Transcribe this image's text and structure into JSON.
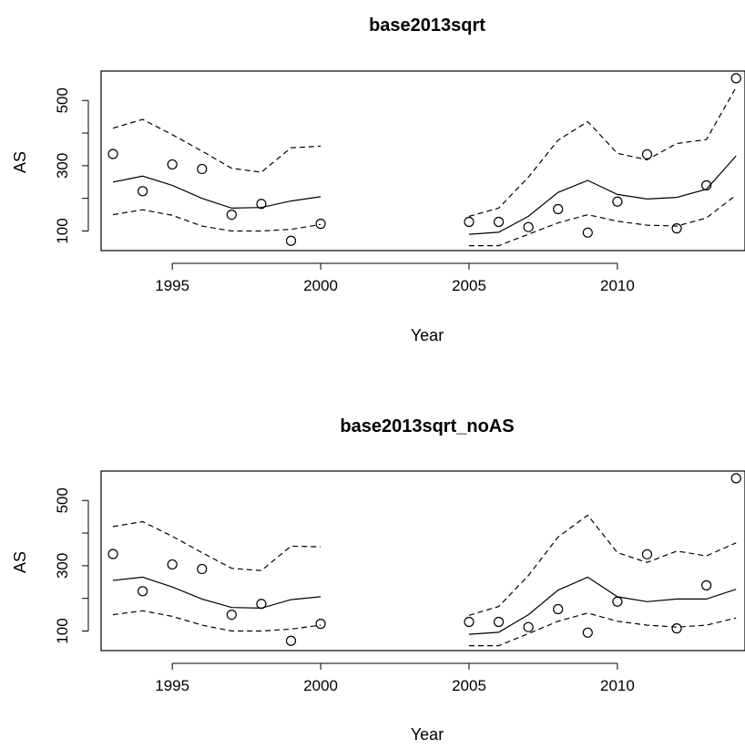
{
  "chart_data": [
    {
      "type": "line",
      "title": "base2013sqrt",
      "xlabel": "Year",
      "ylabel": "AS",
      "xlim": [
        1992.6,
        2014.3
      ],
      "ylim": [
        40,
        590
      ],
      "xticks": [
        1995,
        2000,
        2005,
        2010
      ],
      "yticks": [
        100,
        200,
        300,
        400,
        500
      ],
      "ytick_labels": [
        "100",
        "",
        "300",
        "",
        "500"
      ],
      "grid": false,
      "legend": "none",
      "series": [
        {
          "style": "solid",
          "segments": [
            {
              "x": [
                1993,
                1994,
                1995,
                1996,
                1997,
                1998,
                1999,
                2000
              ],
              "y": [
                250,
                268,
                240,
                200,
                170,
                172,
                192,
                205
              ]
            },
            {
              "x": [
                2005,
                2006,
                2007,
                2008,
                2009,
                2010,
                2011,
                2012,
                2013,
                2014
              ],
              "y": [
                90,
                96,
                145,
                218,
                255,
                212,
                198,
                203,
                228,
                330
              ]
            }
          ]
        },
        {
          "style": "dashed",
          "segments": [
            {
              "x": [
                1993,
                1994,
                1995,
                1996,
                1997,
                1998,
                1999,
                2000
              ],
              "y": [
                415,
                442,
                395,
                345,
                292,
                280,
                355,
                360
              ]
            },
            {
              "x": [
                2005,
                2006,
                2007,
                2008,
                2009,
                2010,
                2011,
                2012,
                2013,
                2014
              ],
              "y": [
                145,
                170,
                265,
                378,
                435,
                338,
                318,
                368,
                380,
                540
              ]
            }
          ]
        },
        {
          "style": "dashed",
          "segments": [
            {
              "x": [
                1993,
                1994,
                1995,
                1996,
                1997,
                1998,
                1999,
                2000
              ],
              "y": [
                150,
                165,
                148,
                115,
                100,
                100,
                105,
                120
              ]
            },
            {
              "x": [
                2005,
                2006,
                2007,
                2008,
                2009,
                2010,
                2011,
                2012,
                2013,
                2014
              ],
              "y": [
                55,
                55,
                90,
                125,
                150,
                130,
                118,
                115,
                140,
                210
              ]
            }
          ]
        }
      ],
      "points": {
        "x": [
          1993,
          1994,
          1995,
          1996,
          1997,
          1998,
          1999,
          2000,
          2005,
          2006,
          2007,
          2008,
          2009,
          2010,
          2011,
          2012,
          2013,
          2014
        ],
        "y": [
          336,
          222,
          304,
          290,
          150,
          183,
          70,
          122,
          128,
          128,
          112,
          167,
          95,
          190,
          335,
          108,
          240,
          568
        ]
      }
    },
    {
      "type": "line",
      "title": "base2013sqrt_noAS",
      "xlabel": "Year",
      "ylabel": "AS",
      "xlim": [
        1992.6,
        2014.3
      ],
      "ylim": [
        40,
        590
      ],
      "xticks": [
        1995,
        2000,
        2005,
        2010
      ],
      "yticks": [
        100,
        200,
        300,
        400,
        500
      ],
      "ytick_labels": [
        "100",
        "",
        "300",
        "",
        "500"
      ],
      "grid": false,
      "legend": "none",
      "series": [
        {
          "style": "solid",
          "segments": [
            {
              "x": [
                1993,
                1994,
                1995,
                1996,
                1997,
                1998,
                1999,
                2000
              ],
              "y": [
                255,
                265,
                235,
                198,
                172,
                170,
                196,
                205
              ]
            },
            {
              "x": [
                2005,
                2006,
                2007,
                2008,
                2009,
                2010,
                2011,
                2012,
                2013,
                2014
              ],
              "y": [
                90,
                96,
                150,
                225,
                265,
                205,
                190,
                198,
                198,
                228
              ]
            }
          ]
        },
        {
          "style": "dashed",
          "segments": [
            {
              "x": [
                1993,
                1994,
                1995,
                1996,
                1997,
                1998,
                1999,
                2000
              ],
              "y": [
                420,
                435,
                390,
                340,
                292,
                285,
                360,
                358
              ]
            },
            {
              "x": [
                2005,
                2006,
                2007,
                2008,
                2009,
                2010,
                2011,
                2012,
                2013,
                2014
              ],
              "y": [
                148,
                175,
                270,
                388,
                455,
                340,
                310,
                345,
                330,
                370
              ]
            }
          ]
        },
        {
          "style": "dashed",
          "segments": [
            {
              "x": [
                1993,
                1994,
                1995,
                1996,
                1997,
                1998,
                1999,
                2000
              ],
              "y": [
                150,
                162,
                145,
                118,
                100,
                100,
                106,
                118
              ]
            },
            {
              "x": [
                2005,
                2006,
                2007,
                2008,
                2009,
                2010,
                2011,
                2012,
                2013,
                2014
              ],
              "y": [
                55,
                55,
                92,
                130,
                155,
                130,
                118,
                112,
                118,
                140
              ]
            }
          ]
        }
      ],
      "points": {
        "x": [
          1993,
          1994,
          1995,
          1996,
          1997,
          1998,
          1999,
          2000,
          2005,
          2006,
          2007,
          2008,
          2009,
          2010,
          2011,
          2012,
          2013,
          2014
        ],
        "y": [
          336,
          222,
          304,
          290,
          150,
          183,
          70,
          122,
          128,
          128,
          112,
          167,
          95,
          190,
          335,
          108,
          240,
          568
        ]
      }
    }
  ]
}
